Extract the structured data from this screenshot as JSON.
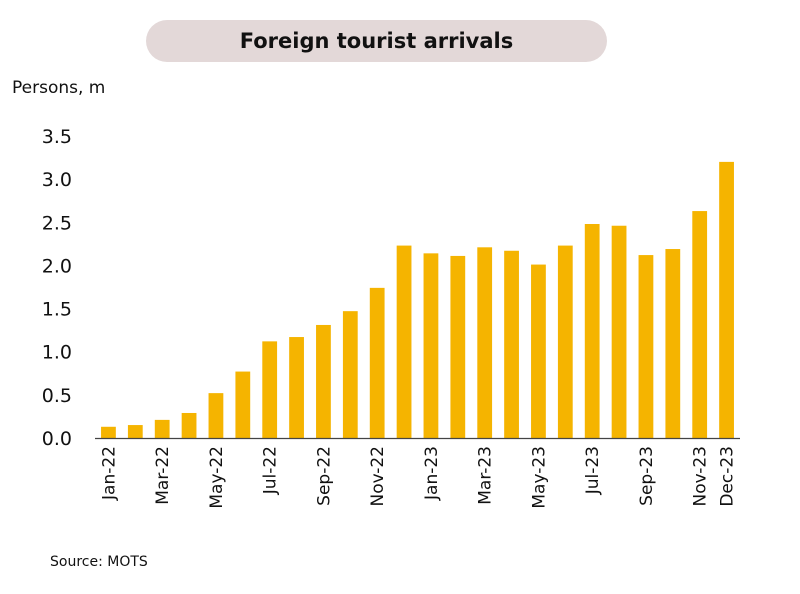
{
  "chart_data": {
    "type": "bar",
    "title": "Foreign tourist arrivals",
    "ylabel": "Persons, m",
    "xlabel": "",
    "source": "Source: MOTS",
    "ylim": [
      0,
      3.5
    ],
    "yticks": [
      "0.0",
      "0.5",
      "1.0",
      "1.5",
      "2.0",
      "2.5",
      "3.0",
      "3.5"
    ],
    "categories": [
      "Jan-22",
      "Feb-22",
      "Mar-22",
      "Apr-22",
      "May-22",
      "Jun-22",
      "Jul-22",
      "Aug-22",
      "Sep-22",
      "Oct-22",
      "Nov-22",
      "Dec-22",
      "Jan-23",
      "Feb-23",
      "Mar-23",
      "Apr-23",
      "May-23",
      "Jun-23",
      "Jul-23",
      "Aug-23",
      "Sep-23",
      "Oct-23",
      "Nov-23",
      "Dec-23"
    ],
    "x_tick_labels": [
      "Jan-22",
      "",
      "Mar-22",
      "",
      "May-22",
      "",
      "Jul-22",
      "",
      "Sep-22",
      "",
      "Nov-22",
      "",
      "Jan-23",
      "",
      "Mar-23",
      "",
      "May-23",
      "",
      "Jul-23",
      "",
      "Sep-23",
      "",
      "Nov-23",
      "Dec-23"
    ],
    "values": [
      0.13,
      0.15,
      0.21,
      0.29,
      0.52,
      0.77,
      1.12,
      1.17,
      1.31,
      1.47,
      1.74,
      2.23,
      2.14,
      2.11,
      2.21,
      2.17,
      2.01,
      2.23,
      2.48,
      2.46,
      2.12,
      2.19,
      2.63,
      3.2
    ],
    "bar_color": "#f5b400",
    "grid": false
  }
}
